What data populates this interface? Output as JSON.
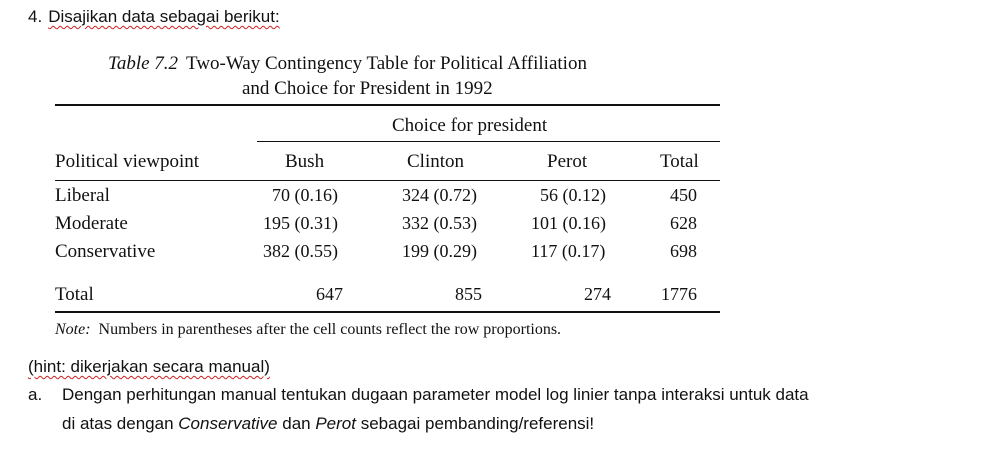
{
  "question": {
    "number": "4.",
    "intro": "Disajikan data sebagai berikut:"
  },
  "table": {
    "caption_label": "Table 7.2",
    "caption_line1": "Two-Way Contingency Table for Political Affiliation",
    "caption_line2": "and Choice for President in 1992",
    "spanner": "Choice for president",
    "columns": [
      "Political viewpoint",
      "Bush",
      "Clinton",
      "Perot",
      "Total"
    ],
    "rows": [
      {
        "label": "Liberal",
        "bush": "70 (0.16)",
        "clinton": "324 (0.72)",
        "perot": "56 (0.12)",
        "total": "450"
      },
      {
        "label": "Moderate",
        "bush": "195 (0.31)",
        "clinton": "332 (0.53)",
        "perot": "101 (0.16)",
        "total": "628"
      },
      {
        "label": "Conservative",
        "bush": "382 (0.55)",
        "clinton": "199 (0.29)",
        "perot": "117 (0.17)",
        "total": "698"
      }
    ],
    "total_row": {
      "label": "Total",
      "bush": "647",
      "clinton": "855",
      "perot": "274",
      "total": "1776"
    },
    "note_label": "Note:",
    "note_text": "Numbers in parentheses after the cell counts reflect the row proportions."
  },
  "hint": "(hint: dikerjakan secara manual)",
  "task": {
    "letter": "a.",
    "line1": "Dengan perhitungan manual tentukan dugaan parameter model log linier tanpa interaksi untuk data",
    "line2_prefix": "di atas dengan",
    "line2_italic1": "Conservative",
    "line2_mid": "dan",
    "line2_italic2": "Perot",
    "line2_suffix": "sebagai pembanding/referensi!"
  }
}
